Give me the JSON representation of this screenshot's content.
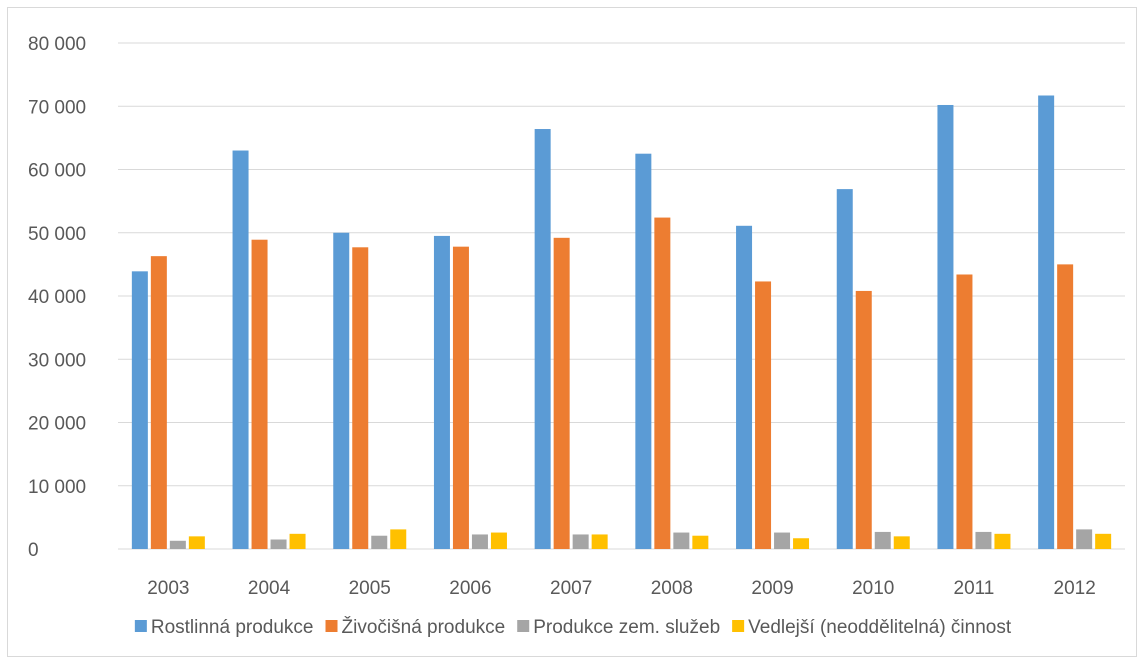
{
  "chart_data": {
    "type": "bar",
    "title": "",
    "xlabel": "",
    "ylabel": "",
    "categories": [
      "2003",
      "2004",
      "2005",
      "2006",
      "2007",
      "2008",
      "2009",
      "2010",
      "2011",
      "2012"
    ],
    "ylim": [
      0,
      80000
    ],
    "yticks": [
      0,
      10000,
      20000,
      30000,
      40000,
      50000,
      60000,
      70000,
      80000
    ],
    "ytick_labels": [
      "0",
      "10 000",
      "20 000",
      "30 000",
      "40 000",
      "50 000",
      "60 000",
      "70 000",
      "80 000"
    ],
    "grid": true,
    "legend_position": "bottom",
    "series": [
      {
        "name": "Rostlinná produkce",
        "color": "#5b9bd5",
        "values": [
          43900,
          63000,
          50000,
          49500,
          66400,
          62500,
          51100,
          56900,
          70200,
          71700
        ]
      },
      {
        "name": "Živočišná produkce",
        "color": "#ed7d31",
        "values": [
          46300,
          48900,
          47700,
          47800,
          49200,
          52400,
          42300,
          40800,
          43400,
          45000
        ]
      },
      {
        "name": "Produkce zem. služeb",
        "color": "#a5a5a5",
        "values": [
          1300,
          1500,
          2100,
          2300,
          2300,
          2600,
          2600,
          2700,
          2700,
          3100
        ]
      },
      {
        "name": "Vedlejší (neoddělitelná) činnost",
        "color": "#ffc000",
        "values": [
          2000,
          2400,
          3100,
          2600,
          2300,
          2100,
          1700,
          2000,
          2400,
          2400
        ]
      }
    ]
  }
}
